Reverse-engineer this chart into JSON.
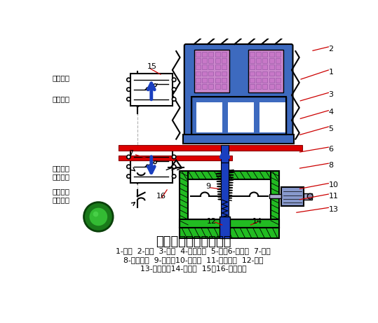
{
  "title": "通电延时型时间继电器",
  "caption_line1": "1-线圈  2-铁心  3-衔铁  4-反力弹簧  5-推板6-活塞杆  7-杠杆",
  "caption_line2": "8-塔形弹簧  9-弱弹簧10-橡皮膜  11-空气室壁  12-活塞",
  "caption_line3": "13-调节螺杆14-进气孔  15、16-微动开关",
  "bg_color": "#ffffff",
  "blue_coil": "#3d6abf",
  "blue_dark": "#1a3f8f",
  "blue_rod": "#1a3fbf",
  "green_body": "#22bb22",
  "green_hatch": "#22bb22",
  "red_bar": "#dd0000",
  "pink_coil": "#cc88cc",
  "pink_grid": "#c878c8",
  "label_red": "#cc0000",
  "black": "#000000",
  "gray_sym": "#666666",
  "switch_blue": "#8899cc",
  "switch_gray": "#aaaacc"
}
